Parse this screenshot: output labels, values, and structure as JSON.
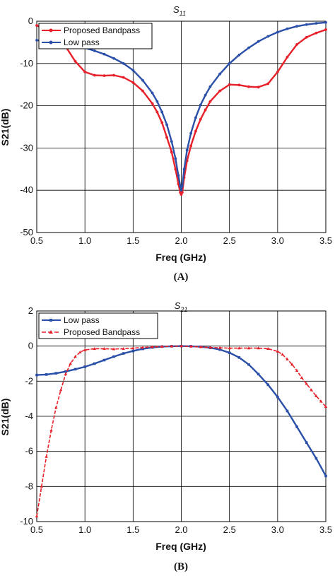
{
  "chart_data": [
    {
      "type": "line",
      "panel_label": "(A)",
      "title_main": "S",
      "title_sub": "11",
      "xlabel": "Freq (GHz)",
      "ylabel": "S21(dB)",
      "xlim": [
        0.5,
        3.5
      ],
      "ylim": [
        -50,
        0
      ],
      "xticks": [
        "0.5",
        "1.0",
        "1.5",
        "2.0",
        "2.5",
        "3.0",
        "3.5"
      ],
      "yticks": [
        "0",
        "-10",
        "-20",
        "-30",
        "-40",
        "-50"
      ],
      "grid": true,
      "legend_position": "top-left",
      "series": [
        {
          "name": "Proposed Bandpass",
          "color": "#e8202a",
          "marker": "circle",
          "x": [
            0.5,
            0.6,
            0.7,
            0.8,
            0.9,
            1.0,
            1.1,
            1.2,
            1.3,
            1.4,
            1.5,
            1.6,
            1.7,
            1.75,
            1.8,
            1.85,
            1.9,
            1.94,
            1.97,
            1.99,
            2.0,
            2.01,
            2.03,
            2.06,
            2.1,
            2.15,
            2.2,
            2.25,
            2.3,
            2.4,
            2.5,
            2.6,
            2.7,
            2.8,
            2.9,
            3.0,
            3.1,
            3.2,
            3.3,
            3.4,
            3.5
          ],
          "values": [
            -1.0,
            -2.0,
            -3.5,
            -6.0,
            -9.5,
            -12.0,
            -12.8,
            -12.9,
            -12.8,
            -13.3,
            -14.5,
            -16.5,
            -19.5,
            -21.5,
            -24.0,
            -27.5,
            -31.0,
            -35.0,
            -38.5,
            -40.5,
            -41.0,
            -40.5,
            -37.0,
            -33.0,
            -29.5,
            -26.0,
            -23.2,
            -21.0,
            -19.0,
            -16.5,
            -15.0,
            -15.1,
            -15.5,
            -15.6,
            -14.8,
            -12.0,
            -8.5,
            -5.5,
            -3.8,
            -2.8,
            -2.0
          ]
        },
        {
          "name": "Low pass",
          "color": "#2a4fa8",
          "marker": "circle",
          "x": [
            0.5,
            0.6,
            0.7,
            0.8,
            0.9,
            1.0,
            1.1,
            1.2,
            1.3,
            1.4,
            1.5,
            1.6,
            1.7,
            1.75,
            1.8,
            1.85,
            1.9,
            1.94,
            1.97,
            1.99,
            2.0,
            2.01,
            2.03,
            2.06,
            2.1,
            2.15,
            2.2,
            2.25,
            2.3,
            2.4,
            2.5,
            2.6,
            2.7,
            2.8,
            2.9,
            3.0,
            3.1,
            3.2,
            3.3,
            3.4,
            3.5
          ],
          "values": [
            -4.5,
            -4.8,
            -5.0,
            -5.3,
            -5.8,
            -6.3,
            -7.0,
            -7.8,
            -8.8,
            -10.0,
            -11.6,
            -14.0,
            -17.0,
            -19.0,
            -21.5,
            -24.5,
            -28.5,
            -32.5,
            -36.5,
            -39.0,
            -40.0,
            -39.0,
            -35.0,
            -30.5,
            -26.5,
            -22.8,
            -19.8,
            -17.5,
            -15.5,
            -12.5,
            -10.0,
            -8.0,
            -6.3,
            -4.8,
            -3.6,
            -2.6,
            -1.8,
            -1.2,
            -0.8,
            -0.5,
            -0.3
          ]
        }
      ]
    },
    {
      "type": "line",
      "panel_label": "(B)",
      "title_main": "S",
      "title_sub": "21",
      "xlabel": "Freq (GHz)",
      "ylabel": "S21(dB)",
      "xlim": [
        0.5,
        3.5
      ],
      "ylim": [
        -10,
        2
      ],
      "xticks": [
        "0.5",
        "1.0",
        "1.5",
        "2.0",
        "2.5",
        "3.0",
        "3.5"
      ],
      "yticks": [
        "2",
        "0",
        "-2",
        "-4",
        "-6",
        "-8",
        "-10"
      ],
      "grid": true,
      "legend_position": "top-left",
      "series": [
        {
          "name": "Low pass",
          "color": "#2a4fa8",
          "marker": "square",
          "x": [
            0.5,
            0.6,
            0.7,
            0.8,
            0.9,
            1.0,
            1.1,
            1.2,
            1.3,
            1.4,
            1.5,
            1.6,
            1.7,
            1.8,
            1.9,
            2.0,
            2.1,
            2.2,
            2.3,
            2.4,
            2.5,
            2.6,
            2.7,
            2.8,
            2.9,
            3.0,
            3.1,
            3.2,
            3.3,
            3.4,
            3.5
          ],
          "values": [
            -1.65,
            -1.62,
            -1.55,
            -1.45,
            -1.32,
            -1.18,
            -1.0,
            -0.8,
            -0.6,
            -0.42,
            -0.28,
            -0.16,
            -0.08,
            -0.03,
            -0.01,
            0.0,
            -0.01,
            -0.04,
            -0.1,
            -0.2,
            -0.38,
            -0.65,
            -1.05,
            -1.6,
            -2.2,
            -2.9,
            -3.7,
            -4.6,
            -5.5,
            -6.4,
            -7.4
          ]
        },
        {
          "name": "Proposed Bandpass",
          "color": "#e8202a",
          "marker": "triangle",
          "x": [
            0.5,
            0.55,
            0.6,
            0.65,
            0.7,
            0.75,
            0.8,
            0.85,
            0.9,
            0.95,
            1.0,
            1.1,
            1.2,
            1.3,
            1.4,
            1.5,
            1.6,
            1.7,
            1.8,
            1.9,
            2.0,
            2.1,
            2.2,
            2.3,
            2.4,
            2.5,
            2.6,
            2.7,
            2.8,
            2.9,
            3.0,
            3.05,
            3.1,
            3.15,
            3.2,
            3.25,
            3.3,
            3.35,
            3.4,
            3.45,
            3.5
          ],
          "values": [
            -9.7,
            -8.0,
            -6.3,
            -4.8,
            -3.5,
            -2.5,
            -1.6,
            -1.0,
            -0.6,
            -0.35,
            -0.22,
            -0.15,
            -0.15,
            -0.17,
            -0.15,
            -0.12,
            -0.08,
            -0.05,
            -0.03,
            -0.01,
            0.0,
            -0.02,
            -0.05,
            -0.08,
            -0.1,
            -0.12,
            -0.12,
            -0.12,
            -0.12,
            -0.15,
            -0.3,
            -0.48,
            -0.75,
            -1.05,
            -1.4,
            -1.8,
            -2.15,
            -2.5,
            -2.85,
            -3.15,
            -3.45
          ]
        }
      ]
    }
  ]
}
